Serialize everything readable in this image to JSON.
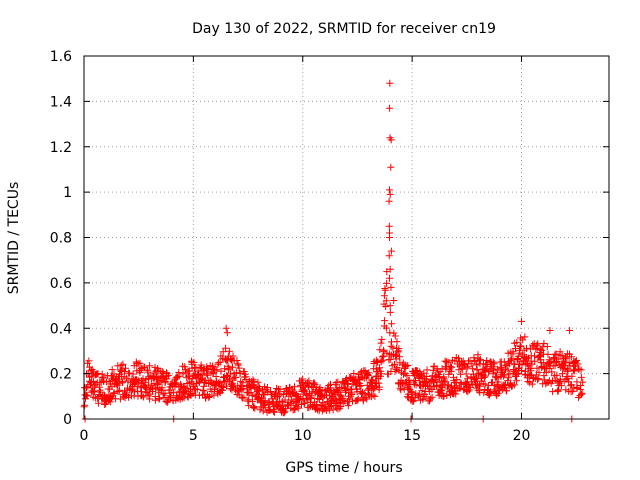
{
  "chart_data": {
    "type": "scatter",
    "title": "Day 130 of 2022, SRMTID for receiver cn19",
    "xlabel": "GPS time / hours",
    "ylabel": "SRMTID / TECUs",
    "xlim": [
      0,
      24
    ],
    "ylim": [
      0,
      1.6
    ],
    "x_ticks": [
      0,
      5,
      10,
      15,
      20
    ],
    "x_tick_labels": [
      "0",
      "5",
      "10",
      "15",
      "20"
    ],
    "y_ticks": [
      0,
      0.2,
      0.4,
      0.6,
      0.8,
      1.0,
      1.2,
      1.4,
      1.6
    ],
    "y_tick_labels": [
      "0",
      "0.2",
      "0.4",
      "0.6",
      "0.8",
      "1",
      "1.2",
      "1.4",
      "1.6"
    ],
    "grid": true,
    "marker": "plus",
    "color": "#ff0000",
    "series": [
      {
        "name": "SRMTID",
        "profile_note": "representative trend read off the plot; points scatter around these values",
        "x": [
          0.0,
          0.2,
          0.5,
          1.0,
          1.5,
          2.0,
          2.5,
          3.0,
          3.5,
          4.0,
          4.5,
          5.0,
          5.5,
          6.0,
          6.5,
          7.0,
          7.5,
          8.0,
          8.5,
          9.0,
          9.5,
          10.0,
          10.5,
          11.0,
          11.5,
          12.0,
          12.5,
          13.0,
          13.5,
          13.8,
          14.0,
          14.2,
          14.5,
          15.0,
          15.5,
          16.0,
          16.5,
          17.0,
          17.5,
          18.0,
          18.5,
          19.0,
          19.5,
          20.0,
          20.5,
          21.0,
          21.5,
          22.0,
          22.5,
          22.8
        ],
        "y": [
          0.1,
          0.18,
          0.14,
          0.13,
          0.16,
          0.17,
          0.18,
          0.16,
          0.15,
          0.14,
          0.16,
          0.18,
          0.17,
          0.16,
          0.24,
          0.18,
          0.12,
          0.1,
          0.08,
          0.08,
          0.09,
          0.12,
          0.1,
          0.09,
          0.1,
          0.12,
          0.14,
          0.15,
          0.2,
          0.5,
          1.0,
          0.3,
          0.18,
          0.15,
          0.14,
          0.16,
          0.18,
          0.19,
          0.18,
          0.2,
          0.18,
          0.17,
          0.22,
          0.28,
          0.24,
          0.25,
          0.2,
          0.22,
          0.18,
          0.14
        ]
      }
    ],
    "spike": {
      "x_hours": 14.0,
      "values": [
        1.48,
        1.37,
        1.24,
        1.23,
        1.11,
        1.01,
        0.99,
        0.96,
        0.85,
        0.82,
        0.8,
        0.74,
        0.72,
        0.66,
        0.62,
        0.58,
        0.5,
        0.47,
        0.42,
        0.38,
        0.34,
        0.32
      ]
    },
    "outliers": [
      {
        "x": 0.05,
        "y": 0.0
      },
      {
        "x": 4.1,
        "y": 0.0
      },
      {
        "x": 14.95,
        "y": 0.0
      },
      {
        "x": 18.25,
        "y": 0.0
      },
      {
        "x": 22.3,
        "y": 0.0
      },
      {
        "x": 6.5,
        "y": 0.4
      },
      {
        "x": 6.55,
        "y": 0.38
      },
      {
        "x": 20.0,
        "y": 0.43
      },
      {
        "x": 21.3,
        "y": 0.39
      },
      {
        "x": 22.2,
        "y": 0.39
      }
    ]
  }
}
